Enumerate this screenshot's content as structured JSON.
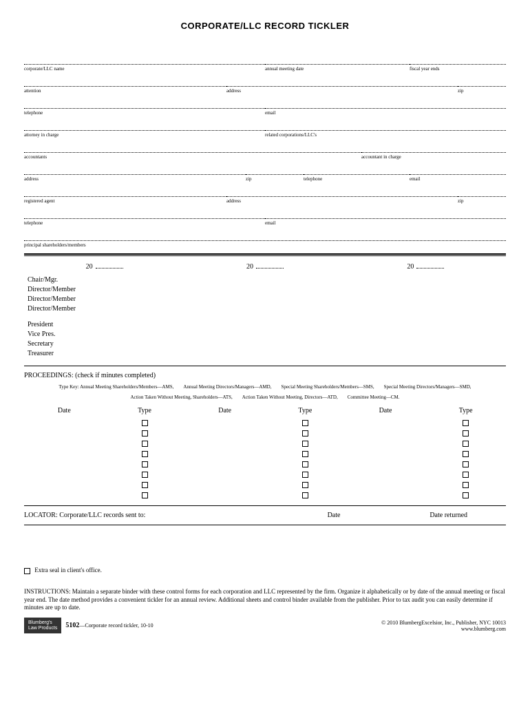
{
  "title": "CORPORATE/LLC RECORD TICKLER",
  "fields": {
    "row1": [
      {
        "label": "corporate/LLC name",
        "width": "50%"
      },
      {
        "label": "annual meeting date",
        "width": "30%"
      },
      {
        "label": "fiscal year ends",
        "width": "20%"
      }
    ],
    "row2": [
      {
        "label": "attention",
        "width": "42%"
      },
      {
        "label": "address",
        "width": "48%"
      },
      {
        "label": "zip",
        "width": "10%"
      }
    ],
    "row3": [
      {
        "label": "telephone",
        "width": "50%"
      },
      {
        "label": "email",
        "width": "50%"
      }
    ],
    "row4": [
      {
        "label": "attorney in charge",
        "width": "50%"
      },
      {
        "label": "related corporations/LLC's",
        "width": "50%"
      }
    ],
    "row5": [
      {
        "label": "accountants",
        "width": "70%"
      },
      {
        "label": "accountant in charge",
        "width": "30%"
      }
    ],
    "row6": [
      {
        "label": "address",
        "width": "46%"
      },
      {
        "label": "zip",
        "width": "12%"
      },
      {
        "label": "telephone",
        "width": "22%"
      },
      {
        "label": "email",
        "width": "20%"
      }
    ],
    "row7": [
      {
        "label": "registered agent",
        "width": "42%"
      },
      {
        "label": "address",
        "width": "48%"
      },
      {
        "label": "zip",
        "width": "10%"
      }
    ],
    "row8": [
      {
        "label": "telephone",
        "width": "50%"
      },
      {
        "label": "email",
        "width": "50%"
      }
    ],
    "row9": [
      {
        "label": "principal shareholders/members",
        "width": "100%"
      }
    ]
  },
  "year_prefix": "20",
  "roles1": [
    "Chair/Mgr.",
    "Director/Member",
    "Director/Member",
    "Director/Member"
  ],
  "roles2": [
    "President",
    "Vice Pres.",
    "Secretary",
    "Treasurer"
  ],
  "proceedings_label": "PROCEEDINGS: (check if minutes completed)",
  "type_key_line1": "Type Key: Annual Meeting Shareholders/Members—AMS,  Annual Meeting Directors/Managers—AMD,  Special Meeting Shareholders/Members—SMS,  Special Meeting Directors/Managers—SMD,",
  "type_key_line2": "Action Taken Without Meeting, Shareholders—ATS,  Action Taken Without Meeting, Directors—ATD,  Committee Meeting—CM.",
  "check_headers": [
    "Date",
    "Type",
    "Date",
    "Type",
    "Date",
    "Type"
  ],
  "check_row_count": 8,
  "locator_label": "LOCATOR: Corporate/LLC records sent to:",
  "locator_date": "Date",
  "locator_returned": "Date returned",
  "extra_seal": "Extra seal in client's office.",
  "instructions": "INSTRUCTIONS: Maintain a separate binder with these control forms for each corporation and LLC represented by the firm. Organize it alphabetically or by date of the annual meeting or fiscal year end. The date method provides a convenient tickler for an annual review. Additional sheets and control binder available from the publisher. Prior to tax audit you can easily determine if minutes are up to date.",
  "footer": {
    "logo_line1": "Blumberg's",
    "logo_line2": "Law Products",
    "form_number": "5102",
    "form_desc": "—Corporate record tickler, 10-10",
    "copyright": "© 2010 BlumbergExcelsior, Inc., Publisher, NYC 10013",
    "url": "www.blumberg.com"
  }
}
